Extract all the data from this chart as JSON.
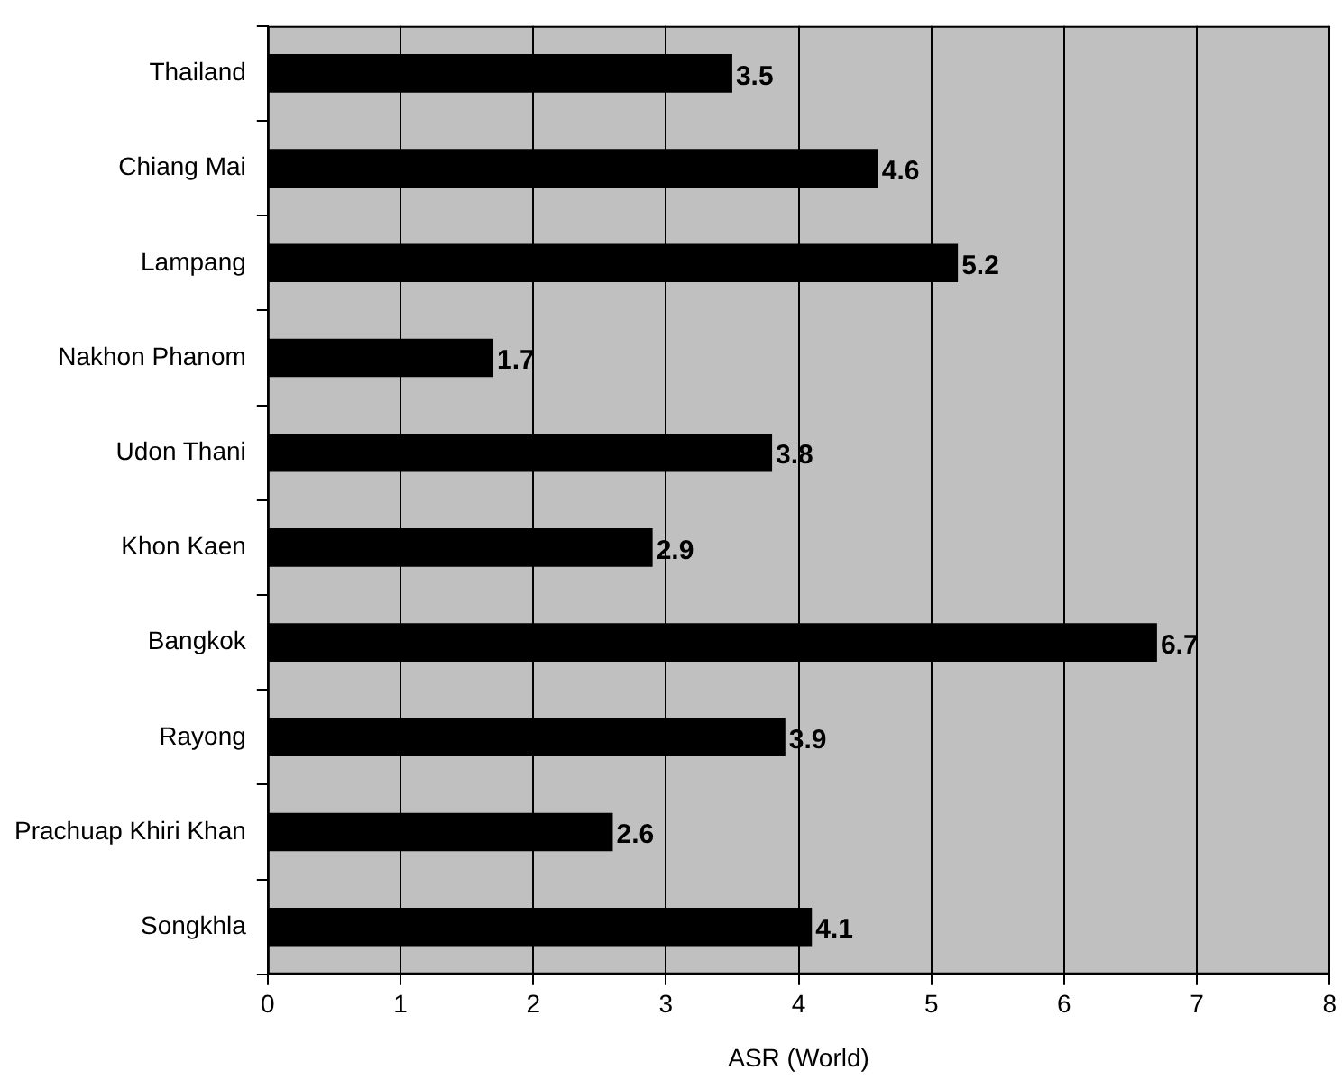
{
  "chart_data": {
    "type": "bar",
    "orientation": "horizontal",
    "xlabel": "ASR (World)",
    "categories": [
      "Thailand",
      "Chiang Mai",
      "Lampang",
      "Nakhon Phanom",
      "Udon Thani",
      "Khon Kaen",
      "Bangkok",
      "Rayong",
      "Prachuap Khiri Khan",
      "Songkhla"
    ],
    "values": [
      3.5,
      4.6,
      5.2,
      1.7,
      3.8,
      2.9,
      6.7,
      3.9,
      2.6,
      4.1
    ],
    "color": "#000000",
    "xlim": [
      0,
      8
    ],
    "xticks": [
      0,
      1,
      2,
      3,
      4,
      5,
      6,
      7,
      8
    ],
    "grid": "x",
    "legend": false,
    "data_labels": true
  }
}
